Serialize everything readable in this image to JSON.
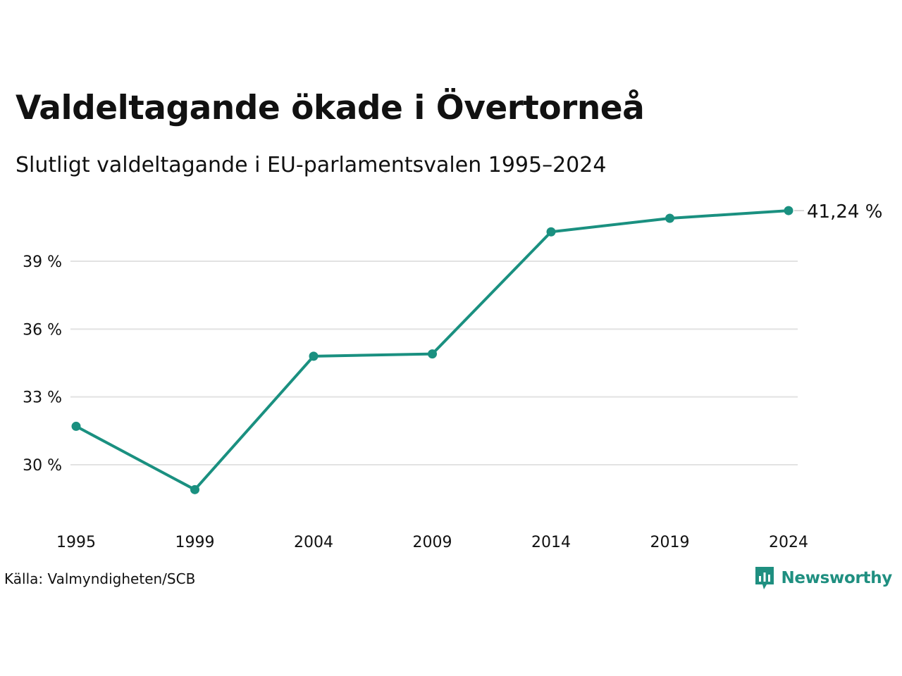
{
  "title": "Valdeltagande ökade i Övertorneå",
  "subtitle": "Slutligt valdeltagande i EU-parlamentsvalen 1995–2024",
  "source": "Källa: Valmyndigheten/SCB",
  "brand": {
    "name": "Newsworthy",
    "logo_icon": "newsworthy-logo-icon",
    "color": "#1f8f80"
  },
  "chart_data": {
    "type": "line",
    "x": [
      "1995",
      "1999",
      "2004",
      "2009",
      "2014",
      "2019",
      "2024"
    ],
    "series": [
      {
        "values": [
          31.7,
          28.9,
          34.8,
          34.9,
          40.3,
          40.9,
          41.24
        ],
        "color": "#1a9080"
      }
    ],
    "y_ticks": [
      30,
      33,
      36,
      39
    ],
    "y_tick_labels": [
      "30 %",
      "33 %",
      "36 %",
      "39 %"
    ],
    "ylim": [
      27.5,
      42.5
    ],
    "last_value_label": "41,24 %",
    "grid": true,
    "gridline_color": "#e2e2e2",
    "xlabel": "",
    "ylabel": ""
  }
}
